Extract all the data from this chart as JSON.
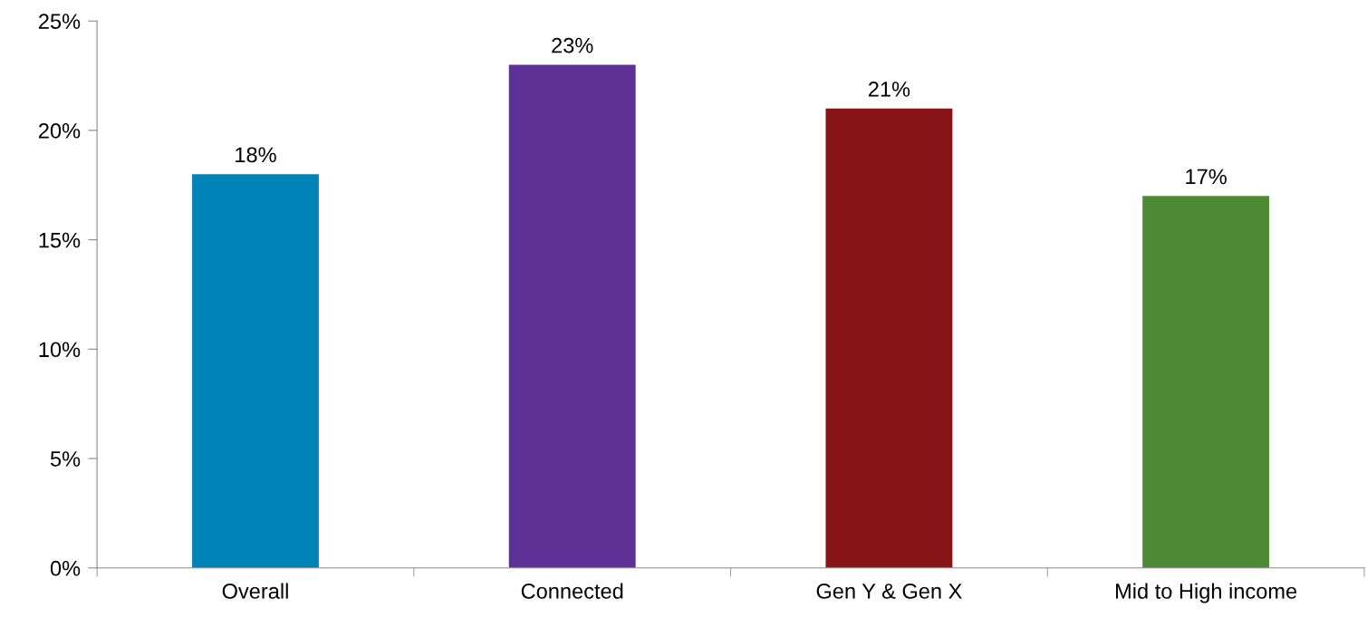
{
  "chart_data": {
    "type": "bar",
    "categories": [
      "Overall",
      "Connected",
      "Gen Y & Gen X",
      "Mid to High income"
    ],
    "values": [
      18,
      23,
      21,
      17
    ],
    "colors": [
      "#0084b8",
      "#5e3197",
      "#871416",
      "#4e8a34"
    ],
    "value_labels": [
      "18%",
      "23%",
      "21%",
      "17%"
    ],
    "ylim": [
      0,
      25
    ],
    "yticks": [
      {
        "value": 0,
        "label": "0%"
      },
      {
        "value": 5,
        "label": "5%"
      },
      {
        "value": 10,
        "label": "10%"
      },
      {
        "value": 15,
        "label": "15%"
      },
      {
        "value": 20,
        "label": "20%"
      },
      {
        "value": 25,
        "label": "25%"
      }
    ],
    "grid": false,
    "legend": false
  }
}
